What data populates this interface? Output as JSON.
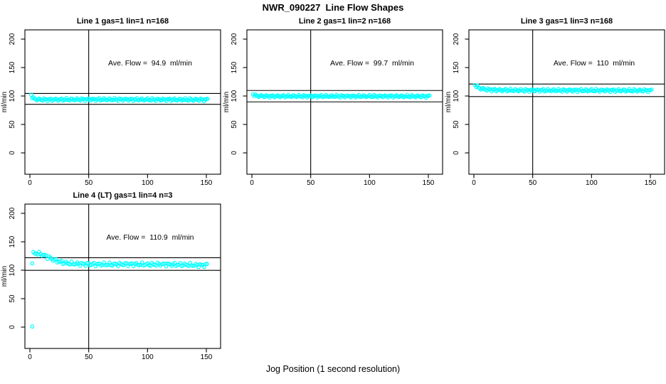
{
  "title": "NWR_090227  Line Flow Shapes",
  "xlabel": "Jog Position (1 second resolution)",
  "colors": {
    "point": "#00ffff",
    "axis": "#000000",
    "background": "#ffffff"
  },
  "chart_data": [
    {
      "type": "scatter",
      "title": "Line 1 gas=1 lin=1 n=168",
      "ylabel": "ml/min",
      "annotation": "Ave. Flow =  94.9  ml/min",
      "avg_flow": 94.9,
      "ref_lines": [
        104.4,
        85.4
      ],
      "vline_x": 50,
      "xticks": [
        0,
        50,
        100,
        150
      ],
      "yticks": [
        0,
        50,
        100,
        150,
        200
      ],
      "xlim": [
        -4.2,
        162
      ],
      "ylim": [
        -37.5,
        216
      ],
      "jitter": 1.3,
      "step": 1,
      "band": [
        [
          1,
          103
        ],
        [
          2,
          97.5
        ],
        [
          3,
          95.5
        ],
        [
          5,
          94.3
        ],
        [
          8,
          93.8
        ],
        [
          15,
          93.6
        ],
        [
          30,
          93.8
        ],
        [
          50,
          94.0
        ],
        [
          75,
          93.9
        ],
        [
          100,
          93.7
        ],
        [
          125,
          93.6
        ],
        [
          151,
          93.5
        ]
      ],
      "outliers": []
    },
    {
      "type": "scatter",
      "title": "Line 2 gas=1 lin=2 n=168",
      "ylabel": "ml/min",
      "annotation": "Ave. Flow =  99.7  ml/min",
      "avg_flow": 99.7,
      "ref_lines": [
        109.7,
        89.7
      ],
      "vline_x": 50,
      "xticks": [
        0,
        50,
        100,
        150
      ],
      "yticks": [
        0,
        50,
        100,
        150,
        200
      ],
      "xlim": [
        -4.2,
        162
      ],
      "ylim": [
        -37.5,
        216
      ],
      "jitter": 1.2,
      "step": 1,
      "band": [
        [
          1,
          103.5
        ],
        [
          2,
          101.5
        ],
        [
          4,
          100.2
        ],
        [
          8,
          99.8
        ],
        [
          15,
          99.6
        ],
        [
          40,
          99.7
        ],
        [
          80,
          99.6
        ],
        [
          120,
          99.5
        ],
        [
          151,
          99.4
        ]
      ],
      "outliers": []
    },
    {
      "type": "scatter",
      "title": "Line 3 gas=1 lin=3 n=168",
      "ylabel": "ml/min",
      "annotation": "Ave. Flow =  110  ml/min",
      "avg_flow": 110,
      "ref_lines": [
        121,
        99
      ],
      "vline_x": 50,
      "xticks": [
        0,
        50,
        100,
        150
      ],
      "yticks": [
        0,
        50,
        100,
        150,
        200
      ],
      "xlim": [
        -4.2,
        162
      ],
      "ylim": [
        -37.5,
        216
      ],
      "jitter": 1.4,
      "step": 1,
      "band": [
        [
          1,
          120
        ],
        [
          2,
          117.5
        ],
        [
          4,
          114.5
        ],
        [
          7,
          112.5
        ],
        [
          12,
          111.2
        ],
        [
          20,
          110.4
        ],
        [
          40,
          110.0
        ],
        [
          80,
          109.9
        ],
        [
          120,
          109.8
        ],
        [
          151,
          109.6
        ]
      ],
      "outliers": []
    },
    {
      "type": "scatter",
      "title": "Line 4 (LT) gas=1 lin=4 n=3",
      "ylabel": "ml/min",
      "annotation": "Ave. Flow =  110.9  ml/min",
      "avg_flow": 110.9,
      "ref_lines": [
        122,
        99.8
      ],
      "vline_x": 50,
      "xticks": [
        0,
        50,
        100,
        150
      ],
      "yticks": [
        0,
        50,
        100,
        150,
        200
      ],
      "xlim": [
        -4.2,
        162
      ],
      "ylim": [
        -37.5,
        216
      ],
      "jitter": 1.8,
      "step": 1.2,
      "band": [
        [
          3,
          129
        ],
        [
          6,
          130
        ],
        [
          9,
          128.5
        ],
        [
          13,
          125.5
        ],
        [
          17,
          121.5
        ],
        [
          22,
          117
        ],
        [
          27,
          114
        ],
        [
          33,
          112
        ],
        [
          42,
          111
        ],
        [
          55,
          110.3
        ],
        [
          70,
          110.2
        ],
        [
          85,
          110.6
        ],
        [
          100,
          110
        ],
        [
          112,
          110.4
        ],
        [
          125,
          109.8
        ],
        [
          135,
          109.5
        ],
        [
          142,
          108.6
        ],
        [
          147,
          108.8
        ],
        [
          151,
          109.2
        ]
      ],
      "outliers": [
        [
          2,
          112
        ],
        [
          2,
          1
        ]
      ]
    }
  ],
  "layout": {
    "rows": 2,
    "cols": 3,
    "panels_used": 4
  }
}
